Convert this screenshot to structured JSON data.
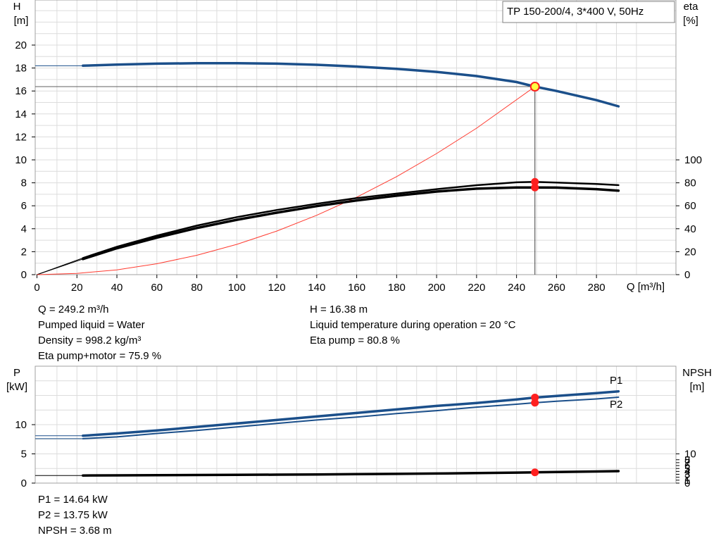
{
  "title": "TP 150-200/4, 3*400 V, 50Hz",
  "colors": {
    "curve_blue": "#1b4f8a",
    "grid": "#dcdcdc",
    "red_curve": "#ff3b30",
    "marker_red": "#ff2020",
    "marker_yellow": "#ffff40",
    "black": "#000000"
  },
  "axes": {
    "h_label": "H",
    "h_unit": "[m]",
    "eta_label": "eta",
    "eta_unit": "[%]",
    "q_label": "Q [m³/h]",
    "p_label": "P",
    "p_unit": "[kW]",
    "npsh_label": "NPSH",
    "npsh_unit": "[m]"
  },
  "info_top_left": [
    "Q = 249.2 m³/h",
    "Pumped liquid = Water",
    "Density = 998.2 kg/m³",
    "Eta pump+motor = 75.9 %"
  ],
  "info_top_right": [
    "H = 16.38 m",
    "Liquid temperature during operation = 20 °C",
    "Eta pump = 80.8 %"
  ],
  "info_bottom": [
    "P1 = 14.64 kW",
    "P2 = 13.75 kW",
    "NPSH = 3.68 m"
  ],
  "chart_data": [
    {
      "type": "line",
      "title": "TP 150-200/4, 3*400 V, 50Hz",
      "xlabel": "Q [m³/h]",
      "ylabel": "H [m]",
      "y2label": "eta [%]",
      "xlim": [
        0,
        300
      ],
      "ylim": [
        0,
        22
      ],
      "y2lim": [
        0,
        110
      ],
      "x_ticks": [
        0,
        20,
        40,
        60,
        80,
        100,
        120,
        140,
        160,
        180,
        200,
        220,
        240,
        260,
        280
      ],
      "y_ticks": [
        0,
        2,
        4,
        6,
        8,
        10,
        12,
        14,
        16,
        18,
        20
      ],
      "y2_ticks": [
        0,
        20,
        40,
        60,
        80,
        100
      ],
      "grid": true,
      "series": [
        {
          "id": "head",
          "axis": "left",
          "color": "#1b4f8a",
          "x": [
            23,
            40,
            60,
            80,
            100,
            120,
            140,
            160,
            180,
            200,
            220,
            240,
            249.2,
            260,
            280,
            291
          ],
          "y": [
            18.2,
            18.3,
            18.38,
            18.42,
            18.42,
            18.38,
            18.28,
            18.13,
            17.93,
            17.66,
            17.3,
            16.78,
            16.38,
            16.0,
            15.2,
            14.66
          ]
        },
        {
          "id": "eta-pump",
          "axis": "right",
          "x": [
            23,
            40,
            60,
            80,
            100,
            120,
            140,
            160,
            180,
            200,
            220,
            240,
            249.2,
            260,
            280,
            291
          ],
          "y": [
            14.5,
            24.3,
            34,
            42.7,
            50.1,
            56.3,
            61.7,
            66.7,
            70.6,
            74.5,
            77.9,
            80.4,
            80.8,
            80.2,
            79,
            78
          ]
        },
        {
          "id": "eta-total",
          "axis": "right",
          "x": [
            23,
            40,
            60,
            80,
            100,
            120,
            140,
            160,
            180,
            200,
            220,
            240,
            249.2,
            260,
            280,
            291
          ],
          "y": [
            13.6,
            23,
            32.3,
            40.6,
            47.8,
            54,
            59.7,
            64.6,
            68.8,
            72.4,
            74.9,
            75.9,
            75.9,
            75.8,
            74.5,
            73.2
          ]
        },
        {
          "id": "system-curve",
          "axis": "left",
          "color": "#ff3b30",
          "x": [
            0,
            20,
            40,
            60,
            80,
            100,
            120,
            140,
            160,
            180,
            200,
            220,
            249.2
          ],
          "y": [
            0,
            0.11,
            0.42,
            0.95,
            1.69,
            2.64,
            3.8,
            5.17,
            6.75,
            8.54,
            10.55,
            12.76,
            16.38
          ]
        }
      ],
      "operating_point": {
        "Q": 249.2,
        "H": 16.38,
        "eta_pump": 80.8,
        "eta_total": 75.9
      }
    },
    {
      "type": "line",
      "xlabel": "Q [m³/h]",
      "ylabel": "P [kW]",
      "y2label": "NPSH [m]",
      "xlim": [
        0,
        300
      ],
      "ylim": [
        0,
        20
      ],
      "y2lim": [
        0,
        20
      ],
      "y_ticks": [
        0,
        5,
        10
      ],
      "y2_ticks": [
        0,
        1,
        2,
        3,
        4,
        5,
        6,
        7,
        8,
        10
      ],
      "y2_tick_labels": [
        "0",
        "1",
        "2",
        "3",
        "4",
        "5",
        "6",
        "7",
        "8",
        "10"
      ],
      "grid": true,
      "series": [
        {
          "name": "P1",
          "axis": "left",
          "color": "#1b4f8a",
          "x": [
            23,
            40,
            60,
            80,
            100,
            120,
            140,
            160,
            180,
            200,
            220,
            240,
            249.2,
            260,
            280,
            291
          ],
          "y": [
            8.1,
            8.5,
            9.0,
            9.6,
            10.2,
            10.8,
            11.4,
            12.0,
            12.6,
            13.2,
            13.7,
            14.3,
            14.64,
            14.9,
            15.4,
            15.7
          ]
        },
        {
          "name": "P2",
          "axis": "left",
          "color": "#1b4f8a",
          "x": [
            23,
            40,
            60,
            80,
            100,
            120,
            140,
            160,
            180,
            200,
            220,
            240,
            249.2,
            260,
            280,
            291
          ],
          "y": [
            7.6,
            7.9,
            8.5,
            9.0,
            9.6,
            10.2,
            10.8,
            11.3,
            11.9,
            12.4,
            13.0,
            13.5,
            13.75,
            14.0,
            14.4,
            14.7
          ]
        },
        {
          "id": "npsh",
          "axis": "right",
          "color": "#000000",
          "x": [
            23,
            40,
            60,
            80,
            100,
            120,
            140,
            160,
            180,
            200,
            220,
            240,
            249.2,
            260,
            280,
            291
          ],
          "y": [
            2.6,
            2.65,
            2.7,
            2.76,
            2.82,
            2.88,
            2.96,
            3.05,
            3.15,
            3.28,
            3.42,
            3.58,
            3.68,
            3.78,
            3.98,
            4.1
          ]
        }
      ],
      "operating_point": {
        "Q": 249.2,
        "P1": 14.64,
        "P2": 13.75,
        "NPSH": 3.68
      }
    }
  ]
}
